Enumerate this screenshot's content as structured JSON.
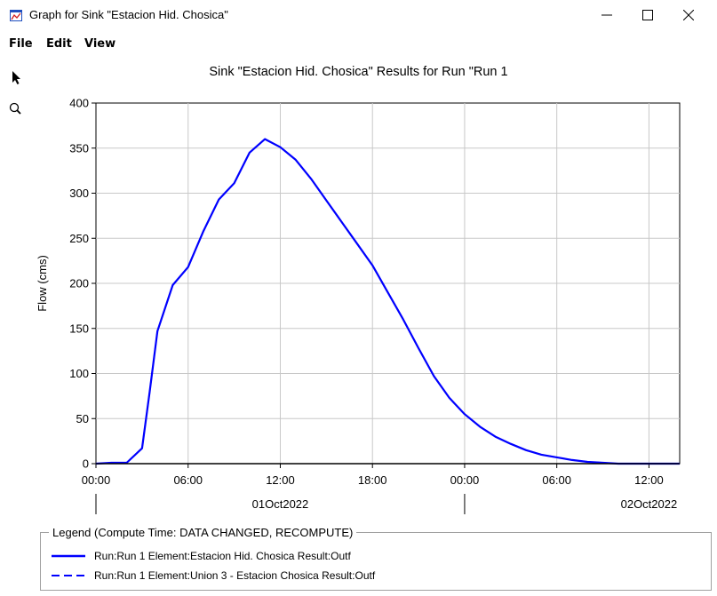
{
  "window": {
    "title": "Graph for Sink \"Estacion Hid. Chosica\"",
    "controls": [
      "minimize-icon",
      "maximize-icon",
      "close-icon"
    ]
  },
  "menu": {
    "items": [
      "File",
      "Edit",
      "View"
    ]
  },
  "toolbar": {
    "tools": [
      "arrow-pointer-icon",
      "zoom-magnifier-icon"
    ]
  },
  "chart_title": "Sink \"Estacion Hid. Chosica\" Results for Run \"Run 1",
  "legend": {
    "title": "Legend (Compute Time: DATA CHANGED, RECOMPUTE)",
    "items": [
      {
        "label": "Run:Run 1 Element:Estacion Hid. Chosica Result:Outf",
        "style": "solid",
        "color": "#0000ff"
      },
      {
        "label": "Run:Run 1 Element:Union 3 - Estacion Chosica Result:Outf",
        "style": "dashed",
        "color": "#0000ff"
      }
    ]
  },
  "chart_data": {
    "type": "line",
    "ylabel": "Flow (cms)",
    "ylim": [
      0,
      400
    ],
    "yticks": [
      "0",
      "50",
      "100",
      "150",
      "200",
      "250",
      "300",
      "350",
      "400"
    ],
    "xlim": [
      "2022-10-01 00:00",
      "2022-10-02 14:00"
    ],
    "xticks": [
      "00:00",
      "06:00",
      "12:00",
      "18:00",
      "00:00",
      "06:00",
      "12:00"
    ],
    "date_labels": [
      "01Oct2022",
      "02Oct2022"
    ],
    "grid": true,
    "series": [
      {
        "name": "Run:Run 1 Element:Estacion Hid. Chosica Result:Outf",
        "color": "#0000ff",
        "style": "solid",
        "x": [
          "2022-10-01 00:00",
          "2022-10-01 01:00",
          "2022-10-01 02:00",
          "2022-10-01 03:00",
          "2022-10-01 03:30",
          "2022-10-01 04:00",
          "2022-10-01 05:00",
          "2022-10-01 06:00",
          "2022-10-01 07:00",
          "2022-10-01 08:00",
          "2022-10-01 09:00",
          "2022-10-01 10:00",
          "2022-10-01 11:00",
          "2022-10-01 12:00",
          "2022-10-01 13:00",
          "2022-10-01 14:00",
          "2022-10-01 15:00",
          "2022-10-01 16:00",
          "2022-10-01 17:00",
          "2022-10-01 18:00",
          "2022-10-01 19:00",
          "2022-10-01 20:00",
          "2022-10-01 21:00",
          "2022-10-01 22:00",
          "2022-10-01 23:00",
          "2022-10-02 00:00",
          "2022-10-02 01:00",
          "2022-10-02 02:00",
          "2022-10-02 03:00",
          "2022-10-02 04:00",
          "2022-10-02 05:00",
          "2022-10-02 06:00",
          "2022-10-02 07:00",
          "2022-10-02 08:00",
          "2022-10-02 09:00",
          "2022-10-02 10:00",
          "2022-10-02 11:00",
          "2022-10-02 12:00",
          "2022-10-02 13:00",
          "2022-10-02 14:00"
        ],
        "y": [
          0,
          1,
          1,
          17,
          80,
          147,
          198,
          218,
          258,
          293,
          311,
          345,
          360,
          351,
          337,
          316,
          292,
          268,
          244,
          220,
          190,
          160,
          128,
          97,
          73,
          55,
          41,
          30,
          22,
          15,
          10,
          7,
          4,
          2,
          1,
          0,
          0,
          0,
          0,
          0
        ]
      },
      {
        "name": "Run:Run 1 Element:Union 3 - Estacion Chosica Result:Outf",
        "color": "#0000ff",
        "style": "dashed",
        "x": [
          "2022-10-01 00:00",
          "2022-10-01 01:00",
          "2022-10-01 02:00",
          "2022-10-01 03:00",
          "2022-10-01 03:30",
          "2022-10-01 04:00",
          "2022-10-01 05:00",
          "2022-10-01 06:00",
          "2022-10-01 07:00",
          "2022-10-01 08:00",
          "2022-10-01 09:00",
          "2022-10-01 10:00",
          "2022-10-01 11:00",
          "2022-10-01 12:00",
          "2022-10-01 13:00",
          "2022-10-01 14:00",
          "2022-10-01 15:00",
          "2022-10-01 16:00",
          "2022-10-01 17:00",
          "2022-10-01 18:00",
          "2022-10-01 19:00",
          "2022-10-01 20:00",
          "2022-10-01 21:00",
          "2022-10-01 22:00",
          "2022-10-01 23:00",
          "2022-10-02 00:00",
          "2022-10-02 01:00",
          "2022-10-02 02:00",
          "2022-10-02 03:00",
          "2022-10-02 04:00",
          "2022-10-02 05:00",
          "2022-10-02 06:00",
          "2022-10-02 07:00",
          "2022-10-02 08:00",
          "2022-10-02 09:00",
          "2022-10-02 10:00",
          "2022-10-02 11:00",
          "2022-10-02 12:00",
          "2022-10-02 13:00",
          "2022-10-02 14:00"
        ],
        "y": [
          0,
          1,
          1,
          17,
          80,
          147,
          198,
          218,
          258,
          293,
          311,
          345,
          360,
          351,
          337,
          316,
          292,
          268,
          244,
          220,
          190,
          160,
          128,
          97,
          73,
          55,
          41,
          30,
          22,
          15,
          10,
          7,
          4,
          2,
          1,
          0,
          0,
          0,
          0,
          0
        ]
      }
    ]
  }
}
